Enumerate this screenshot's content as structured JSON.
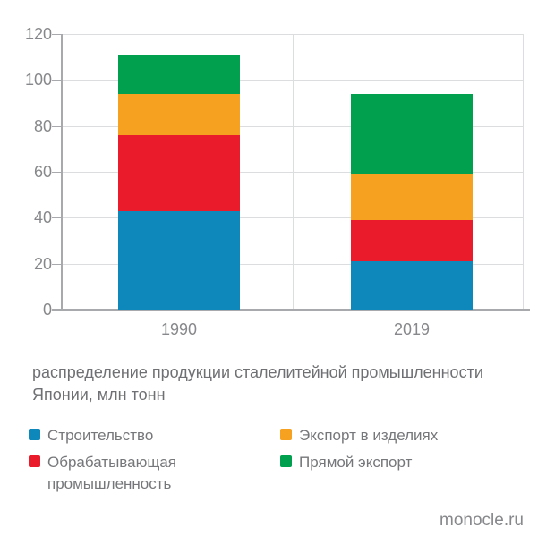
{
  "chart_data": {
    "type": "bar",
    "stacked": true,
    "categories": [
      "1990",
      "2019"
    ],
    "series": [
      {
        "key": "construction",
        "name": "Строительство",
        "color": "#0e87ba",
        "values": [
          43,
          21
        ]
      },
      {
        "key": "manufacturing",
        "name": "Обрабатывающая промышленность",
        "color": "#ea1c2c",
        "values": [
          33,
          18
        ]
      },
      {
        "key": "export-in-products",
        "name": "Экспорт в изделиях",
        "color": "#f6a11f",
        "values": [
          18,
          20
        ]
      },
      {
        "key": "direct-export",
        "name": "Прямой экспорт",
        "color": "#00a04e",
        "values": [
          17,
          35
        ]
      }
    ],
    "totals": [
      111,
      94
    ],
    "title": "распределение продукции сталелитейной промышленности Японии, млн тонн",
    "xlabel": "",
    "ylabel": "",
    "ylim": [
      0,
      120
    ],
    "yticks": [
      0,
      20,
      40,
      60,
      80,
      100,
      120
    ],
    "grid": true,
    "legend_position": "bottom"
  },
  "caption": {
    "lines": [
      "распределение продукции сталелитейной промышленности",
      "Японии, млн тонн"
    ]
  },
  "legend": {
    "columns": [
      [
        0,
        1
      ],
      [
        2,
        3
      ]
    ]
  },
  "footer": {
    "source": "monocle.ru"
  },
  "colors": {
    "background": "#ffffff",
    "grid": "#dcdddf",
    "axis": "#a7a9ac",
    "tick_label": "#87888b",
    "caption_text": "#6f7073",
    "legend_text": "#76777a"
  }
}
